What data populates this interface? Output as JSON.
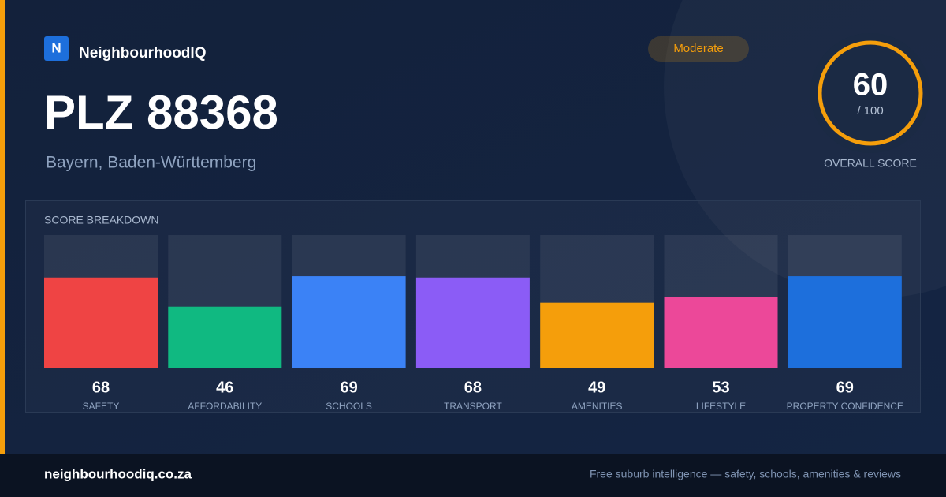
{
  "brand": {
    "logo": "N",
    "name": "NeighbourhoodIQ"
  },
  "badge": "Moderate",
  "title": "PLZ 88368",
  "subtitle": "Bayern, Baden-Württemberg",
  "overall": {
    "value": 60,
    "scale_label": "/ 100",
    "label": "OVERALL SCORE"
  },
  "chart_data": {
    "type": "bar",
    "title": "SCORE BREAKDOWN",
    "categories": [
      "SAFETY",
      "AFFORDABILITY",
      "SCHOOLS",
      "TRANSPORT",
      "AMENITIES",
      "LIFESTYLE",
      "PROPERTY CONFIDENCE"
    ],
    "values": [
      68,
      46,
      69,
      68,
      49,
      53,
      69
    ],
    "colors": [
      "#ef4444",
      "#10b981",
      "#3b82f6",
      "#8b5cf6",
      "#f59e0b",
      "#ec4899",
      "#1d6fdc"
    ],
    "ylim": [
      0,
      100
    ]
  },
  "footer": {
    "site": "neighbourhoodiq.co.za",
    "tagline": "Free suburb intelligence — safety, schools, amenities & reviews"
  }
}
